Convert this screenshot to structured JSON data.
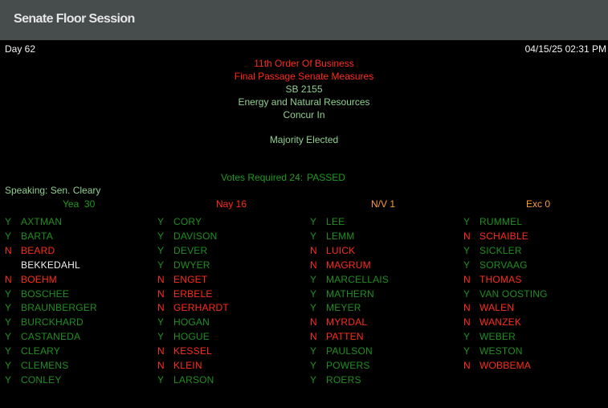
{
  "header": {
    "title": "Senate Floor Session"
  },
  "session": {
    "day": "Day 62",
    "datetime": "04/15/25 02:31 PM"
  },
  "business": {
    "order": "11th Order Of Business",
    "type": "Final Passage Senate Measures",
    "bill": "SB 2155",
    "committee": "Energy and Natural Resources",
    "action": "Concur In",
    "requirement": "Majority Elected",
    "votes_required": "Votes Required 24:",
    "result": "PASSED"
  },
  "speaking": "Speaking: Sen. Cleary",
  "tally": {
    "yea": "Yea  30",
    "nay": "Nay 16",
    "nv": "N/V 1",
    "exc": "Exc 0"
  },
  "colors": {
    "yea": "#1f8f1f",
    "nay": "#ff2b1a",
    "nv": "#ff9c2e",
    "not_voting_name": "#f0f0f0",
    "header_bg": "#474c4d"
  },
  "columns": [
    [
      [
        "Y",
        "AXTMAN"
      ],
      [
        "Y",
        "BARTA"
      ],
      [
        "N",
        "BEARD"
      ],
      [
        "",
        "BEKKEDAHL"
      ],
      [
        "N",
        "BOEHM"
      ],
      [
        "Y",
        "BOSCHEE"
      ],
      [
        "Y",
        "BRAUNBERGER"
      ],
      [
        "Y",
        "BURCKHARD"
      ],
      [
        "Y",
        "CASTANEDA"
      ],
      [
        "Y",
        "CLEARY"
      ],
      [
        "Y",
        "CLEMENS"
      ],
      [
        "Y",
        "CONLEY"
      ]
    ],
    [
      [
        "Y",
        "CORY"
      ],
      [
        "Y",
        "DAVISON"
      ],
      [
        "Y",
        "DEVER"
      ],
      [
        "Y",
        "DWYER"
      ],
      [
        "N",
        "ENGET"
      ],
      [
        "N",
        "ERBELE"
      ],
      [
        "N",
        "GERHARDT"
      ],
      [
        "Y",
        "HOGAN"
      ],
      [
        "Y",
        "HOGUE"
      ],
      [
        "N",
        "KESSEL"
      ],
      [
        "N",
        "KLEIN"
      ],
      [
        "Y",
        "LARSON"
      ]
    ],
    [
      [
        "Y",
        "LEE"
      ],
      [
        "Y",
        "LEMM"
      ],
      [
        "N",
        "LUICK"
      ],
      [
        "N",
        "MAGRUM"
      ],
      [
        "Y",
        "MARCELLAIS"
      ],
      [
        "Y",
        "MATHERN"
      ],
      [
        "Y",
        "MEYER"
      ],
      [
        "N",
        "MYRDAL"
      ],
      [
        "N",
        "PATTEN"
      ],
      [
        "Y",
        "PAULSON"
      ],
      [
        "Y",
        "POWERS"
      ],
      [
        "Y",
        "ROERS"
      ]
    ],
    [
      [
        "Y",
        "RUMMEL"
      ],
      [
        "N",
        "SCHAIBLE"
      ],
      [
        "Y",
        "SICKLER"
      ],
      [
        "Y",
        "SORVAAG"
      ],
      [
        "N",
        "THOMAS"
      ],
      [
        "Y",
        "VAN OOSTING"
      ],
      [
        "N",
        "WALEN"
      ],
      [
        "N",
        "WANZEK"
      ],
      [
        "Y",
        "WEBER"
      ],
      [
        "Y",
        "WESTON"
      ],
      [
        "N",
        "WOBBEMA"
      ]
    ]
  ]
}
